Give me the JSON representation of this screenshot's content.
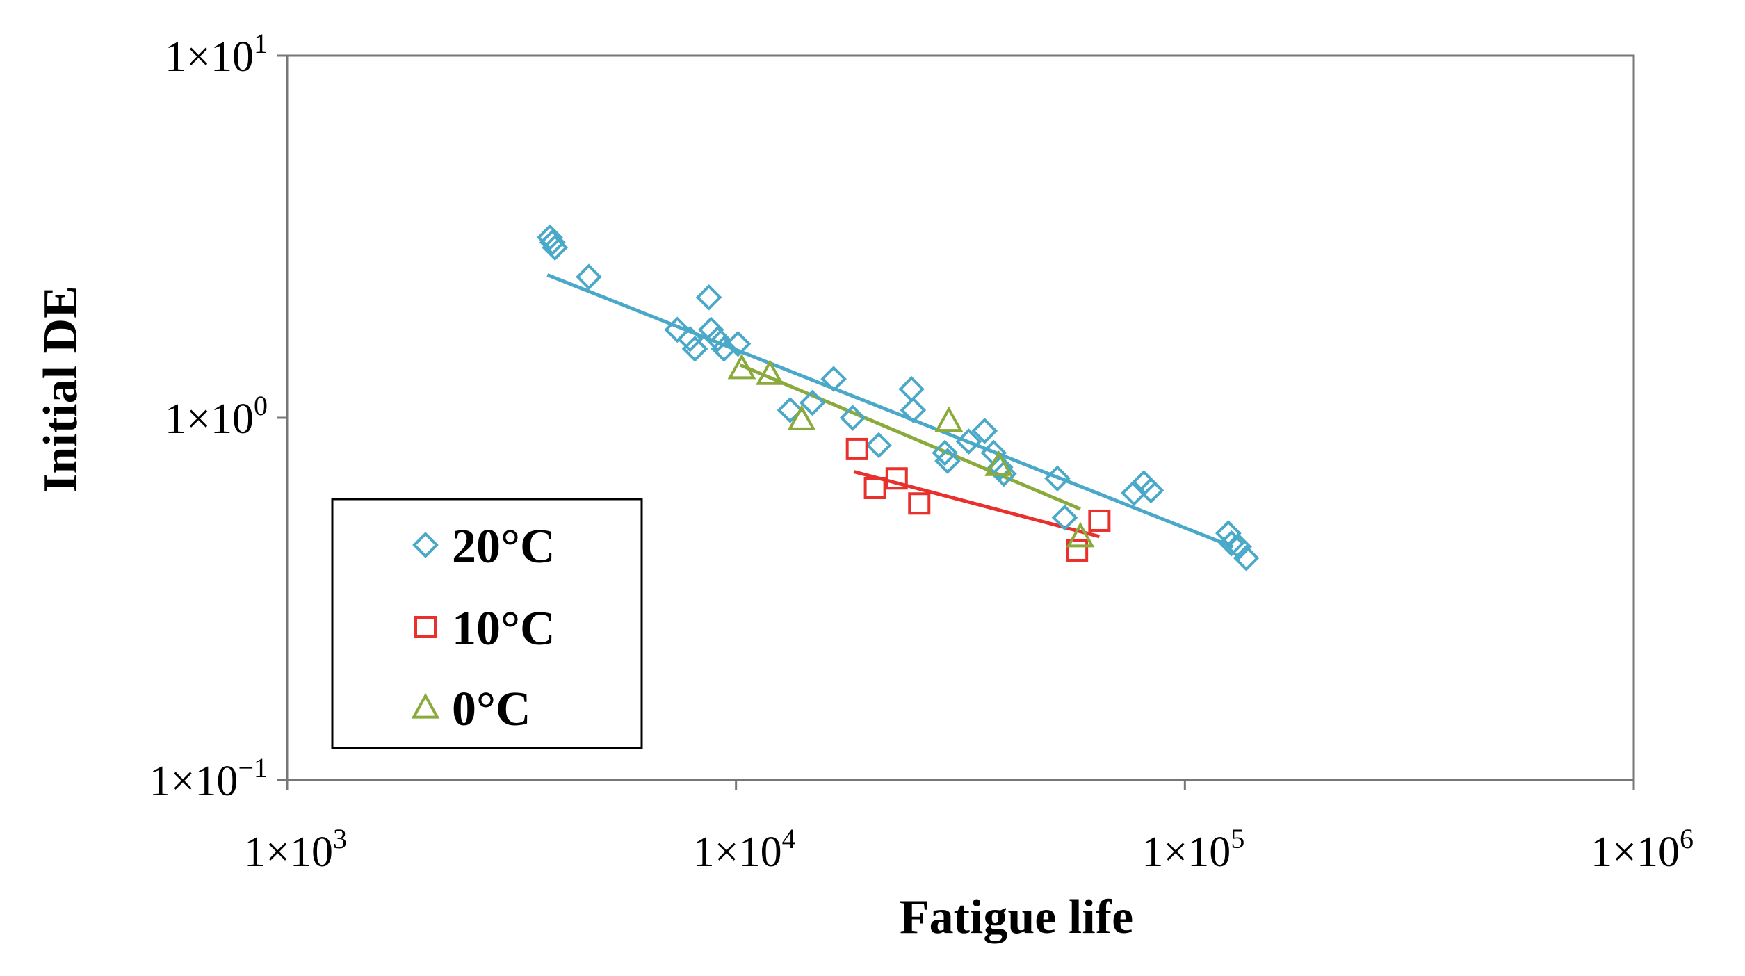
{
  "chart_data": {
    "type": "scatter",
    "xlabel": "Fatigue life",
    "ylabel": "Initial DE",
    "xscale": "log",
    "yscale": "log",
    "xlim": [
      1000,
      1000000
    ],
    "ylim": [
      0.1,
      10
    ],
    "x_ticks": [
      {
        "value": 1000,
        "mantissa": "1×10",
        "exp": "3"
      },
      {
        "value": 10000,
        "mantissa": "1×10",
        "exp": "4"
      },
      {
        "value": 100000,
        "mantissa": "1×10",
        "exp": "5"
      },
      {
        "value": 1000000,
        "mantissa": "1×10",
        "exp": "6"
      }
    ],
    "y_ticks": [
      {
        "value": 10,
        "mantissa": "1×10",
        "exp": "1"
      },
      {
        "value": 1,
        "mantissa": "1×10",
        "exp": "0"
      },
      {
        "value": 0.1,
        "mantissa": "1×10",
        "exp": "−1"
      }
    ],
    "grid": false,
    "legend": {
      "position": "bottom-left",
      "boxed": true
    },
    "series": [
      {
        "name": "20°C",
        "color": "#4aa8c8",
        "marker": "diamond",
        "points": [
          [
            3850,
            3.15
          ],
          [
            3900,
            3.05
          ],
          [
            3950,
            2.95
          ],
          [
            4700,
            2.45
          ],
          [
            7400,
            1.75
          ],
          [
            7900,
            1.65
          ],
          [
            8100,
            1.55
          ],
          [
            8700,
            2.15
          ],
          [
            8800,
            1.75
          ],
          [
            9100,
            1.65
          ],
          [
            9400,
            1.55
          ],
          [
            10100,
            1.6
          ],
          [
            13200,
            1.05
          ],
          [
            14800,
            1.1
          ],
          [
            16500,
            1.28
          ],
          [
            18200,
            1.0
          ],
          [
            20800,
            0.84
          ],
          [
            24600,
            1.2
          ],
          [
            24800,
            1.05
          ],
          [
            29200,
            0.8
          ],
          [
            29600,
            0.76
          ],
          [
            33000,
            0.86
          ],
          [
            35800,
            0.92
          ],
          [
            37500,
            0.8
          ],
          [
            38800,
            0.73
          ],
          [
            39500,
            0.7
          ],
          [
            52000,
            0.68
          ],
          [
            54000,
            0.53
          ],
          [
            77000,
            0.62
          ],
          [
            81000,
            0.66
          ],
          [
            84000,
            0.63
          ],
          [
            125000,
            0.48
          ],
          [
            127000,
            0.45
          ],
          [
            132000,
            0.44
          ],
          [
            137000,
            0.41
          ]
        ],
        "trendline": [
          [
            3800,
            2.48
          ],
          [
            128000,
            0.44
          ]
        ]
      },
      {
        "name": "10°C",
        "color": "#e8302c",
        "marker": "square",
        "points": [
          [
            18600,
            0.82
          ],
          [
            20400,
            0.64
          ],
          [
            22800,
            0.68
          ],
          [
            25600,
            0.58
          ],
          [
            57500,
            0.43
          ],
          [
            64500,
            0.52
          ]
        ],
        "trendline": [
          [
            18300,
            0.71
          ],
          [
            64500,
            0.47
          ]
        ]
      },
      {
        "name": "0°C",
        "color": "#8aaa3c",
        "marker": "triangle",
        "points": [
          [
            10300,
            1.37
          ],
          [
            11900,
            1.32
          ],
          [
            14000,
            0.99
          ],
          [
            29800,
            0.98
          ],
          [
            38500,
            0.74
          ],
          [
            58500,
            0.47
          ]
        ],
        "trendline": [
          [
            10200,
            1.4
          ],
          [
            58500,
            0.56
          ]
        ]
      }
    ]
  }
}
